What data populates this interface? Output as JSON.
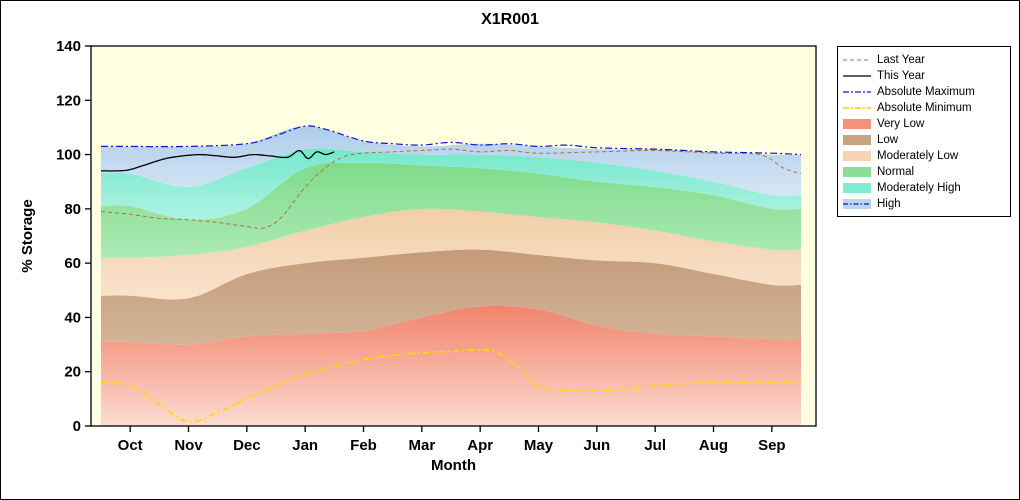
{
  "chart_data": {
    "type": "area",
    "title": "X1R001",
    "xlabel": "Month",
    "ylabel": "% Storage",
    "ylim": [
      0,
      140
    ],
    "yticks": [
      0,
      20,
      40,
      60,
      80,
      100,
      120,
      140
    ],
    "categories": [
      "Oct",
      "Nov",
      "Dec",
      "Jan",
      "Feb",
      "Mar",
      "Apr",
      "May",
      "Jun",
      "Jul",
      "Aug",
      "Sep"
    ],
    "plot_bg": "#FFFFE1",
    "bands": [
      {
        "name": "Very Low",
        "color_top": "#F2836B",
        "color_bottom": "#FBDCD2",
        "upper": [
          31,
          30,
          33,
          34,
          35,
          40,
          44,
          43,
          37,
          34,
          33,
          32
        ]
      },
      {
        "name": "Low",
        "color_top": "#C49B7B",
        "color_bottom": "#D3B497",
        "upper": [
          48,
          47,
          56,
          60,
          62,
          64,
          65,
          63,
          61,
          60,
          56,
          52
        ]
      },
      {
        "name": "Moderately Low",
        "color_top": "#F2CEA9",
        "color_bottom": "#F9E3CB",
        "upper": [
          62,
          63,
          66,
          72,
          77,
          80,
          79,
          77,
          75,
          72,
          68,
          65
        ]
      },
      {
        "name": "Normal",
        "color_top": "#7EDB8B",
        "color_bottom": "#ADEAB5",
        "upper": [
          81,
          76,
          80,
          95,
          97,
          96,
          95,
          93,
          90,
          88,
          85,
          80
        ]
      },
      {
        "name": "Moderately High",
        "color_top": "#74E8CC",
        "color_bottom": "#AFF2E2",
        "upper": [
          93,
          88,
          95,
          102,
          101,
          100,
          100,
          99,
          97,
          94,
          90,
          85
        ]
      },
      {
        "name": "High",
        "color_top": "#AECDEA",
        "color_bottom": "#D6E6F5",
        "upper": [
          103,
          103,
          104,
          110.5,
          105,
          103,
          104,
          103,
          102,
          102,
          101,
          100
        ]
      }
    ],
    "lines": [
      {
        "name": "Last Year",
        "color": "#B26E3C",
        "dash": "4 3",
        "width": 1,
        "x": [
          -0.5,
          0,
          0.5,
          1,
          1.5,
          2,
          2.3,
          2.6,
          3,
          3.4,
          3.8,
          4.5,
          5,
          5.5,
          6,
          6.5,
          7,
          8,
          9,
          10,
          10.8,
          11.2,
          11.5
        ],
        "values": [
          79,
          78,
          76.5,
          76,
          75,
          73.5,
          73,
          77,
          88,
          96,
          100,
          101,
          101.5,
          102,
          101,
          101.5,
          100.5,
          101,
          101.5,
          100.5,
          100,
          95,
          93
        ]
      },
      {
        "name": "This Year",
        "color": "#000000",
        "dash": "",
        "width": 1.3,
        "x": [
          -0.5,
          -0.2,
          0,
          0.3,
          0.6,
          0.9,
          1.2,
          1.5,
          1.8,
          2.1,
          2.4,
          2.7,
          2.9,
          3.05,
          3.2,
          3.35,
          3.5
        ],
        "values": [
          94,
          94,
          94.5,
          96.5,
          98.5,
          99.5,
          100,
          99.5,
          99,
          100,
          99.5,
          99,
          101.5,
          98.5,
          101,
          100,
          101
        ]
      },
      {
        "name": "Absolute Maximum",
        "color": "#1414CC",
        "dash": "7 3 2 3",
        "width": 1.2,
        "x": [
          -0.5,
          0,
          1,
          2,
          2.5,
          3,
          3.4,
          4,
          4.5,
          5,
          5.5,
          6,
          6.5,
          7,
          7.5,
          8,
          9,
          10,
          11,
          11.5
        ],
        "values": [
          103,
          103,
          103,
          104,
          107,
          110.5,
          109,
          105,
          104,
          103.5,
          104.5,
          103.5,
          104,
          103,
          103.5,
          102.5,
          102,
          101,
          100.5,
          100
        ]
      },
      {
        "name": "Absolute Minimum",
        "color": "#FFD800",
        "dash": "7 3 2 3",
        "width": 1.7,
        "x": [
          -0.5,
          0,
          0.5,
          1,
          1.5,
          2,
          2.5,
          3,
          3.5,
          4,
          4.5,
          5,
          5.5,
          6,
          6.3,
          6.7,
          7,
          7.5,
          8,
          8.5,
          9,
          10,
          11,
          11.5
        ],
        "values": [
          16,
          15,
          8,
          1.5,
          5,
          10,
          15,
          19,
          22,
          24.5,
          26,
          27,
          27.5,
          28,
          27,
          21,
          14.5,
          13,
          13,
          13.5,
          15,
          16,
          16,
          16
        ]
      }
    ],
    "legend": {
      "entries": [
        {
          "label": "Last Year",
          "sample": "line",
          "color": "#B26E3C",
          "dash": "4 3",
          "width": 1
        },
        {
          "label": "This Year",
          "sample": "line",
          "color": "#000000",
          "dash": "",
          "width": 1.3
        },
        {
          "label": "Absolute Maximum",
          "sample": "line",
          "color": "#1414CC",
          "dash": "6 2 2 2",
          "width": 1.2
        },
        {
          "label": "Absolute Minimum",
          "sample": "line",
          "color": "#FFD800",
          "dash": "6 2 2 2",
          "width": 1.7
        },
        {
          "label": "Very Low",
          "sample": "box",
          "color": "#F4917A"
        },
        {
          "label": "Low",
          "sample": "box",
          "color": "#C9A183"
        },
        {
          "label": "Moderately Low",
          "sample": "box",
          "color": "#F5D5B4"
        },
        {
          "label": "Normal",
          "sample": "box",
          "color": "#8ADF96"
        },
        {
          "label": "Moderately High",
          "sample": "box",
          "color": "#7FEBD0"
        },
        {
          "label": "High",
          "sample": "box",
          "color": "#BAD5EE",
          "overlay_color": "#1414CC",
          "overlay_dash": "5 2 1.5 2"
        }
      ]
    }
  }
}
